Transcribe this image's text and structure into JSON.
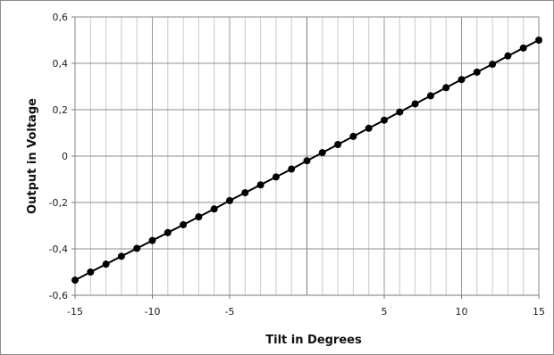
{
  "chart_data": {
    "type": "line",
    "title": "",
    "xlabel": "Tilt in Degrees",
    "ylabel": "Output in Voltage",
    "xlim": [
      -15,
      15
    ],
    "ylim": [
      -0.6,
      0.6
    ],
    "x_ticks": [
      -15,
      -10,
      -5,
      5,
      10,
      15
    ],
    "x_tick_labels": [
      "-15",
      "-10",
      "-5",
      "5",
      "10",
      "15"
    ],
    "y_ticks": [
      -0.6,
      -0.4,
      -0.2,
      0,
      0.2,
      0.4,
      0.6
    ],
    "y_tick_labels": [
      "-0,6",
      "-0,4",
      "-0,2",
      "0",
      "0,2",
      "0,4",
      "0,6"
    ],
    "grid": true,
    "legend": "none",
    "series": [
      {
        "color": "#000000",
        "marker": "circle",
        "x": [
          -15,
          -14,
          -13,
          -12,
          -11,
          -10,
          -9,
          -8,
          -7,
          -6,
          -5,
          -4,
          -3,
          -2,
          -1,
          0,
          1,
          2,
          3,
          4,
          5,
          6,
          7,
          8,
          9,
          10,
          11,
          12,
          13,
          14,
          15
        ],
        "y": [
          -0.535,
          -0.5,
          -0.466,
          -0.432,
          -0.398,
          -0.364,
          -0.33,
          -0.296,
          -0.262,
          -0.228,
          -0.192,
          -0.158,
          -0.124,
          -0.09,
          -0.056,
          -0.02,
          0.015,
          0.05,
          0.085,
          0.12,
          0.155,
          0.19,
          0.225,
          0.26,
          0.295,
          0.33,
          0.362,
          0.396,
          0.432,
          0.466,
          0.5
        ]
      }
    ]
  }
}
